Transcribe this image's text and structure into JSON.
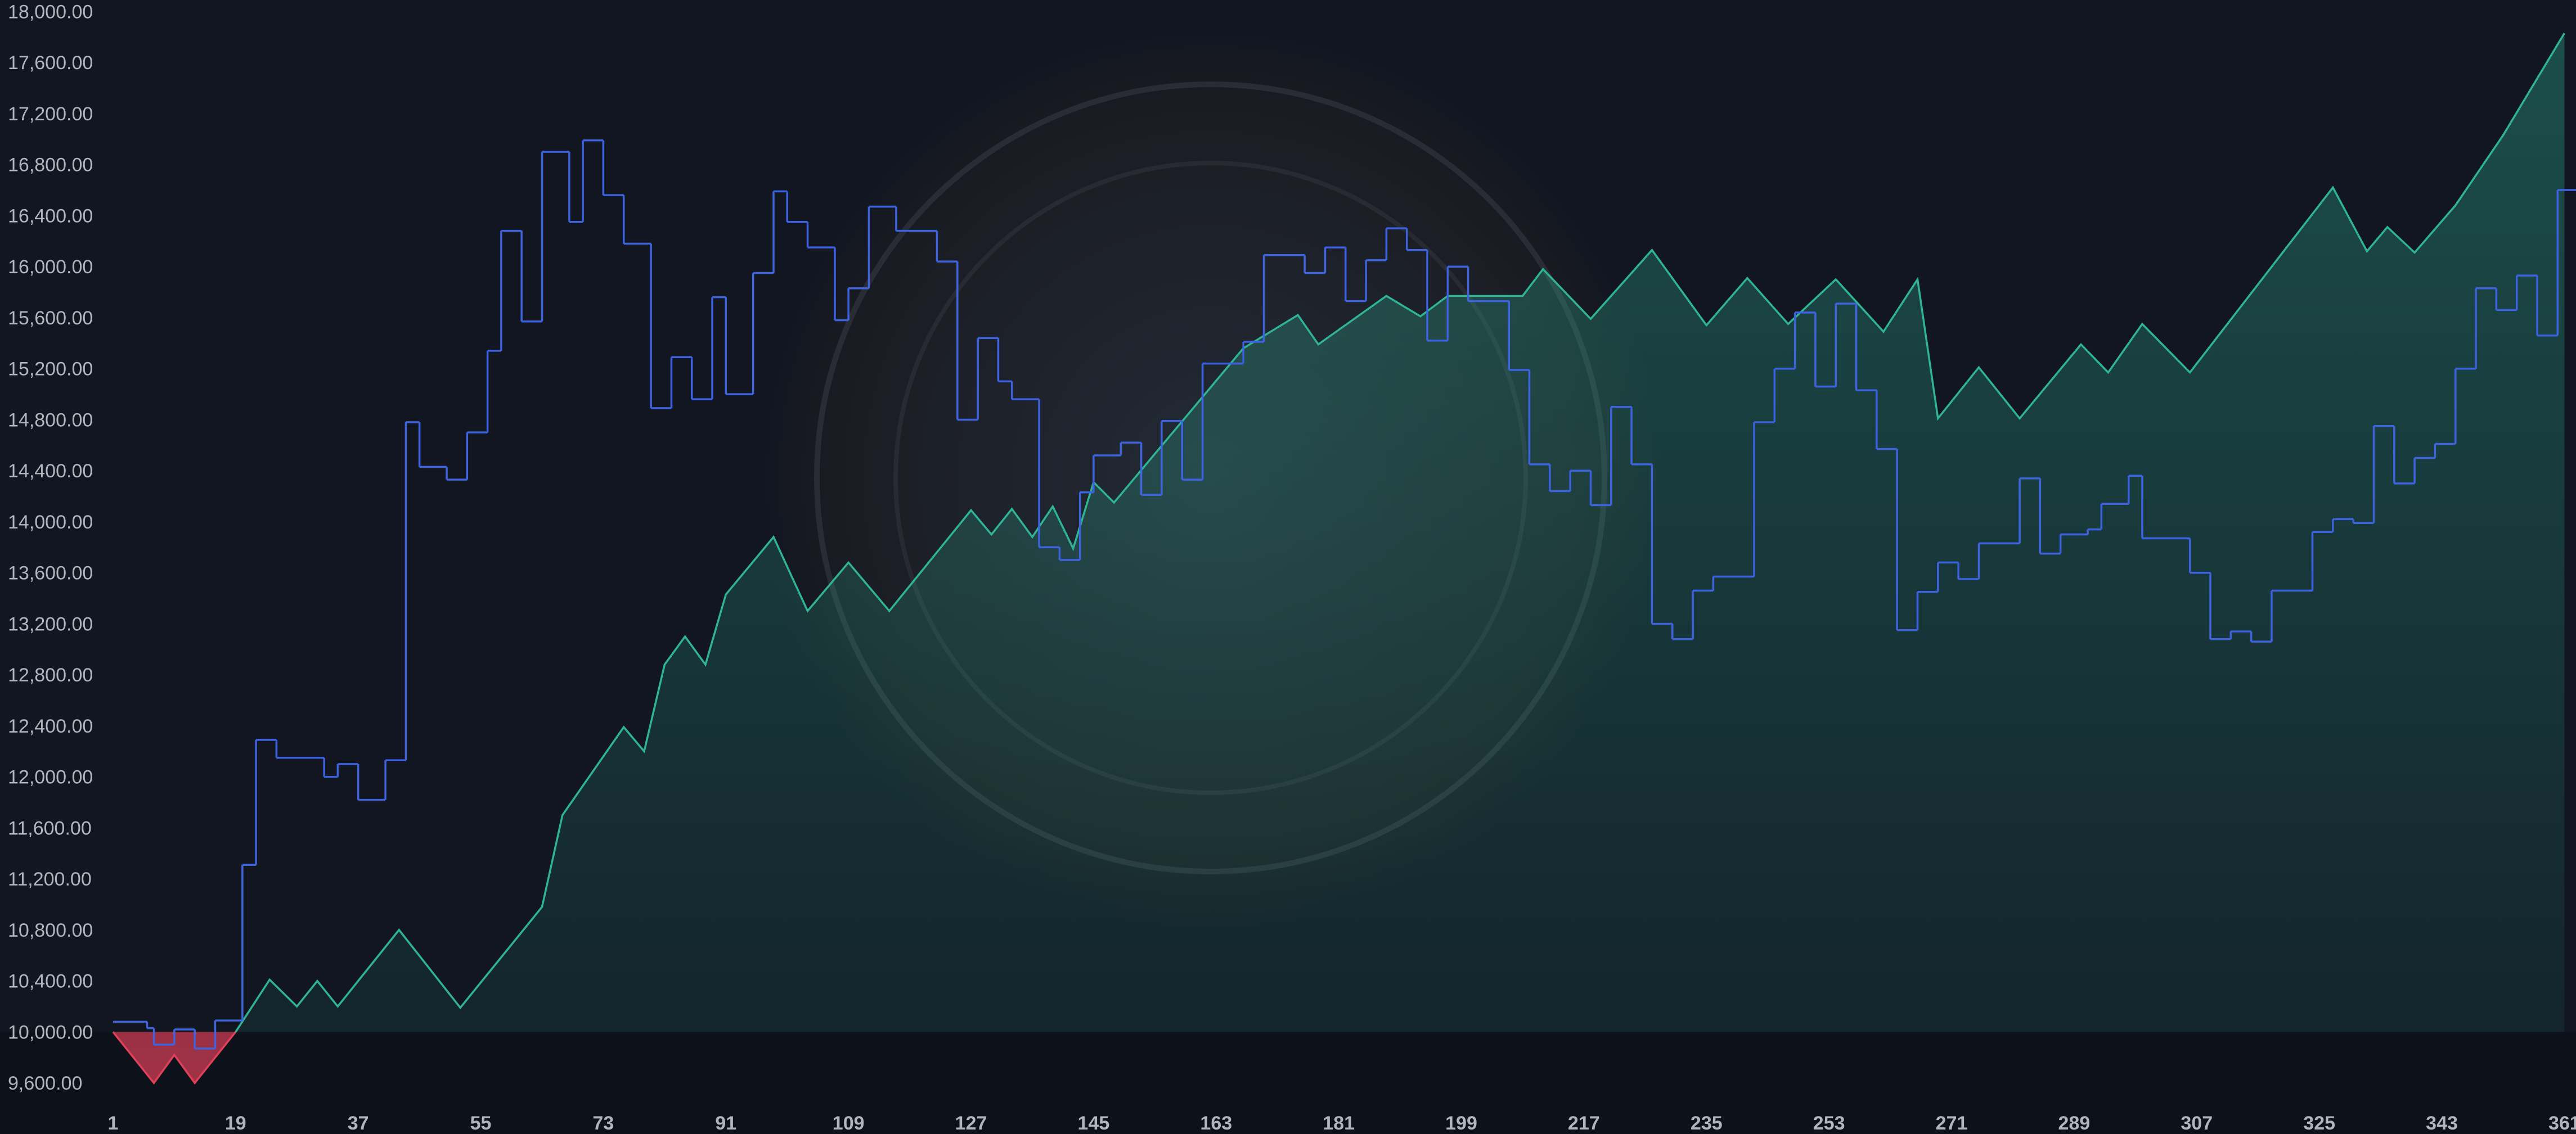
{
  "chart_data": {
    "type": "line",
    "xlim": [
      -15.6,
      362.7
    ],
    "ylim": [
      9200,
      18090
    ],
    "baseline": 10000,
    "grid": false,
    "xticks": [
      1,
      19,
      37,
      55,
      73,
      91,
      109,
      127,
      145,
      163,
      181,
      199,
      217,
      235,
      253,
      271,
      289,
      307,
      325,
      343,
      361
    ],
    "yticks": [
      {
        "value": 9600,
        "label": "9,600.00"
      },
      {
        "value": 10000,
        "label": "10,000.00"
      },
      {
        "value": 10400,
        "label": "10,400.00"
      },
      {
        "value": 10800,
        "label": "10,800.00"
      },
      {
        "value": 11200,
        "label": "11,200.00"
      },
      {
        "value": 11600,
        "label": "11,600.00"
      },
      {
        "value": 12000,
        "label": "12,000.00"
      },
      {
        "value": 12400,
        "label": "12,400.00"
      },
      {
        "value": 12800,
        "label": "12,800.00"
      },
      {
        "value": 13200,
        "label": "13,200.00"
      },
      {
        "value": 13600,
        "label": "13,600.00"
      },
      {
        "value": 14000,
        "label": "14,000.00"
      },
      {
        "value": 14400,
        "label": "14,400.00"
      },
      {
        "value": 14800,
        "label": "14,800.00"
      },
      {
        "value": 15200,
        "label": "15,200.00"
      },
      {
        "value": 15600,
        "label": "15,600.00"
      },
      {
        "value": 16000,
        "label": "16,000.00"
      },
      {
        "value": 16400,
        "label": "16,400.00"
      },
      {
        "value": 16800,
        "label": "16,800.00"
      },
      {
        "value": 17200,
        "label": "17,200.00"
      },
      {
        "value": 17600,
        "label": "17,600.00"
      },
      {
        "value": 18000,
        "label": "18,000.00"
      }
    ],
    "series": [
      {
        "style": "area",
        "color": "#2fb596",
        "negative_color": "#e0405a",
        "x": [
          1,
          7,
          10,
          13,
          19,
          24,
          28,
          31,
          34,
          43,
          52,
          64,
          67,
          76,
          79,
          82,
          85,
          88,
          91,
          98,
          103,
          109,
          115,
          127,
          130,
          133,
          136,
          139,
          142,
          145,
          148,
          167,
          175,
          178,
          188,
          193,
          197,
          208,
          211,
          218,
          227,
          235,
          241,
          247,
          254,
          261,
          266,
          269,
          275,
          281,
          290,
          294,
          299,
          306,
          327,
          332,
          335,
          339,
          345,
          352,
          361
        ],
        "values": [
          10000,
          9600,
          9820,
          9600,
          10000,
          10410,
          10200,
          10400,
          10200,
          10800,
          10190,
          10980,
          11700,
          12390,
          12200,
          12880,
          13100,
          12880,
          13430,
          13880,
          13300,
          13680,
          13300,
          14090,
          13900,
          14100,
          13880,
          14120,
          13790,
          14310,
          14150,
          15360,
          15620,
          15390,
          15770,
          15610,
          15770,
          15770,
          15980,
          15590,
          16130,
          15540,
          15910,
          15550,
          15900,
          15490,
          15900,
          14810,
          15210,
          14810,
          15390,
          15170,
          15550,
          15170,
          16620,
          16120,
          16310,
          16110,
          16480,
          17030,
          17830
        ]
      },
      {
        "style": "step",
        "color": "#3d63e0",
        "x": [
          1,
          6,
          7,
          10,
          13,
          16,
          20,
          22,
          25,
          32,
          34,
          37,
          41,
          44,
          46,
          50,
          53,
          56,
          58,
          61,
          64,
          68,
          70,
          73,
          76,
          80,
          83,
          86,
          89,
          91,
          95,
          98,
          100,
          103,
          107,
          109,
          112,
          116,
          122,
          125,
          128,
          131,
          133,
          137,
          140,
          143,
          145,
          149,
          152,
          155,
          158,
          161,
          167,
          170,
          176,
          179,
          182,
          185,
          188,
          191,
          194,
          197,
          200,
          206,
          209,
          212,
          215,
          218,
          221,
          224,
          227,
          230,
          233,
          236,
          242,
          245,
          248,
          251,
          254,
          257,
          260,
          263,
          266,
          269,
          272,
          275,
          281,
          284,
          287,
          291,
          293,
          297,
          299,
          306,
          309,
          312,
          315,
          318,
          324,
          327,
          330,
          333,
          336,
          339,
          342,
          345,
          348,
          351,
          354,
          357,
          360
        ],
        "values": [
          10080,
          10030,
          9900,
          10020,
          9870,
          10090,
          11310,
          12290,
          12150,
          12000,
          12100,
          11820,
          12130,
          14780,
          14430,
          14330,
          14700,
          15340,
          16280,
          15570,
          16900,
          16350,
          16990,
          16560,
          16180,
          14890,
          15290,
          14960,
          15760,
          15000,
          15950,
          16590,
          16350,
          16150,
          15580,
          15830,
          16470,
          16280,
          16040,
          14800,
          15440,
          15100,
          14960,
          13800,
          13700,
          14230,
          14520,
          14620,
          14210,
          14790,
          14330,
          15240,
          15410,
          16090,
          15950,
          16150,
          15730,
          16050,
          16300,
          16130,
          15420,
          16000,
          15730,
          15190,
          14450,
          14240,
          14400,
          14130,
          14900,
          14450,
          13200,
          13080,
          13460,
          13570,
          14780,
          15200,
          15640,
          15060,
          15710,
          15030,
          14570,
          13150,
          13450,
          13680,
          13550,
          13830,
          14340,
          13750,
          13900,
          13940,
          14140,
          14360,
          13870,
          13600,
          13080,
          13140,
          13060,
          13460,
          13920,
          14020,
          13990,
          14750,
          14300,
          14500,
          14610,
          15200,
          15830,
          15660,
          15930,
          15460,
          16600
        ]
      }
    ]
  }
}
